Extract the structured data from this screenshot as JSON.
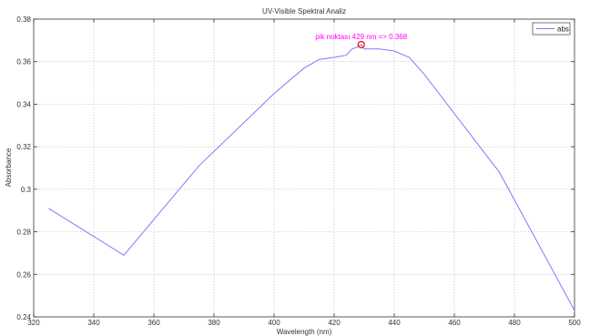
{
  "chart_data": {
    "type": "line",
    "title": "UV-Visible Spektral Analiz",
    "xlabel": "Wavelength (nm)",
    "ylabel": "Absorbance",
    "xlim": [
      320,
      500
    ],
    "ylim": [
      0.24,
      0.38
    ],
    "x_ticks": [
      320,
      340,
      360,
      380,
      400,
      420,
      440,
      460,
      480,
      500
    ],
    "y_ticks": [
      0.24,
      0.26,
      0.28,
      0.3,
      0.32,
      0.34,
      0.36,
      0.38
    ],
    "x_tick_labels": [
      "320",
      "340",
      "360",
      "380",
      "400",
      "420",
      "440",
      "460",
      "480",
      "500"
    ],
    "y_tick_labels": [
      "0.24",
      "0.26",
      "0.28",
      "0.3",
      "0.32",
      "0.34",
      "0.36",
      "0.38"
    ],
    "grid": true,
    "legend_position": "top-right",
    "series": [
      {
        "name": "abs",
        "color": "#7b7bff",
        "x": [
          325,
          350,
          375,
          400,
          410,
          415,
          420,
          424,
          426,
          428,
          429,
          430,
          432,
          435,
          440,
          445,
          450,
          475,
          500
        ],
        "y": [
          0.291,
          0.269,
          0.311,
          0.345,
          0.357,
          0.361,
          0.362,
          0.363,
          0.366,
          0.367,
          0.368,
          0.366,
          0.366,
          0.366,
          0.365,
          0.362,
          0.354,
          0.308,
          0.243
        ]
      }
    ],
    "annotation": {
      "text": "pik noktası 429 nm => 0.368",
      "x": 429,
      "y": 0.368,
      "color": "#ff00ff",
      "marker_color": "#ff0000"
    }
  }
}
